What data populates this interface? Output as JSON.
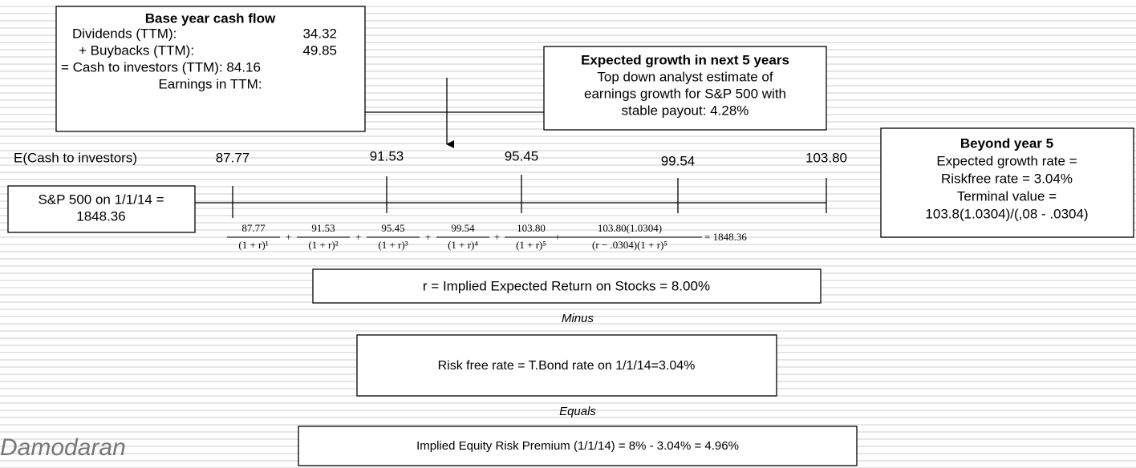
{
  "base_year": {
    "title": "Base year cash flow",
    "rows": [
      [
        "Dividends (TTM):",
        "34.32"
      ],
      [
        "+ Buybacks (TTM):",
        "49.85"
      ]
    ],
    "cash_line": "= Cash to investors (TTM): 84.16",
    "earnings": "Earnings in TTM:"
  },
  "growth_box": {
    "title": "Expected growth in next 5 years",
    "lines": [
      "Top down analyst estimate of",
      "earnings growth for S&P 500 with",
      "stable payout: 4.28%"
    ]
  },
  "timeline": {
    "label": "E(Cash to investors)",
    "values": [
      "87.77",
      "91.53",
      "95.45",
      "99.54",
      "103.80"
    ],
    "index_box": [
      "S&P 500 on 1/1/14 =",
      "1848.36"
    ]
  },
  "formula": {
    "terms": [
      {
        "num": "87.77",
        "den": "(1 + r)¹"
      },
      {
        "num": "91.53",
        "den": "(1 + r)²"
      },
      {
        "num": "95.45",
        "den": "(1 + r)³"
      },
      {
        "num": "99.54",
        "den": "(1 + r)⁴"
      },
      {
        "num": "103.80",
        "den": "(1 + r)⁵"
      },
      {
        "num": "103.80(1.0304)",
        "den": "(r − .0304)(1 + r)⁵"
      }
    ],
    "operator": "+",
    "result": "= 1848.36"
  },
  "beyond": {
    "title": "Beyond year 5",
    "lines": [
      "Expected growth rate =",
      "Riskfree rate = 3.04%",
      "Terminal value =",
      "103.8(1.0304)/(,08 - .0304)"
    ]
  },
  "implied_return": "r = Implied Expected Return on Stocks = 8.00%",
  "minus": "Minus",
  "risk_free": "Risk free rate = T.Bond rate on 1/1/14=3.04%",
  "equals": "Equals",
  "erp": "Implied Equity Risk Premium (1/1/14) = 8% - 3.04% = 4.96%",
  "author": "Damodaran"
}
